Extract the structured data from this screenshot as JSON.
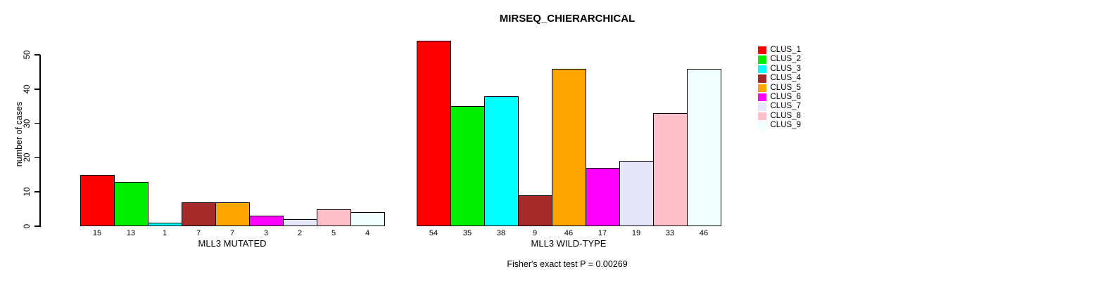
{
  "figure": {
    "title": "MIRSEQ_CHIERARCHICAL",
    "ylabel": "number of cases",
    "annotation": "Fisher's exact test P = 0.00269"
  },
  "chart_data": {
    "type": "bar",
    "title": "MIRSEQ_CHIERARCHICAL",
    "xlabel": "",
    "ylabel": "number of cases",
    "ylim": [
      0,
      50
    ],
    "yticks": [
      0,
      10,
      20,
      30,
      40,
      50
    ],
    "grid": false,
    "legend_position": "right-outside",
    "bar_value_labels": true,
    "annotation": "Fisher's exact test P = 0.00269",
    "groups": [
      {
        "label": "MLL3 MUTATED",
        "values": [
          15,
          13,
          1,
          7,
          7,
          3,
          2,
          5,
          4
        ]
      },
      {
        "label": "MLL3 WILD-TYPE",
        "values": [
          54,
          35,
          38,
          9,
          46,
          17,
          19,
          33,
          46
        ]
      }
    ],
    "series": [
      {
        "name": "CLUS_1",
        "color": "#FF0000",
        "values": [
          15,
          54
        ]
      },
      {
        "name": "CLUS_2",
        "color": "#00EE00",
        "values": [
          13,
          35
        ]
      },
      {
        "name": "CLUS_3",
        "color": "#00FFFF",
        "values": [
          1,
          38
        ]
      },
      {
        "name": "CLUS_4",
        "color": "#A52A2A",
        "values": [
          7,
          9
        ]
      },
      {
        "name": "CLUS_5",
        "color": "#FFA500",
        "values": [
          7,
          46
        ]
      },
      {
        "name": "CLUS_6",
        "color": "#FF00FF",
        "values": [
          3,
          17
        ]
      },
      {
        "name": "CLUS_7",
        "color": "#E6E6FA",
        "values": [
          2,
          19
        ]
      },
      {
        "name": "CLUS_8",
        "color": "#FFC0CB",
        "values": [
          5,
          33
        ]
      },
      {
        "name": "CLUS_9",
        "color": "#F0FFFF",
        "values": [
          4,
          46
        ]
      }
    ]
  },
  "legend": {
    "items": [
      {
        "label": "CLUS_1",
        "color": "#FF0000"
      },
      {
        "label": "CLUS_2",
        "color": "#00EE00"
      },
      {
        "label": "CLUS_3",
        "color": "#00FFFF"
      },
      {
        "label": "CLUS_4",
        "color": "#A52A2A"
      },
      {
        "label": "CLUS_5",
        "color": "#FFA500"
      },
      {
        "label": "CLUS_6",
        "color": "#FF00FF"
      },
      {
        "label": "CLUS_7",
        "color": "#E6E6FA"
      },
      {
        "label": "CLUS_8",
        "color": "#FFC0CB"
      },
      {
        "label": "CLUS_9",
        "color": "#F0FFFF"
      }
    ]
  }
}
